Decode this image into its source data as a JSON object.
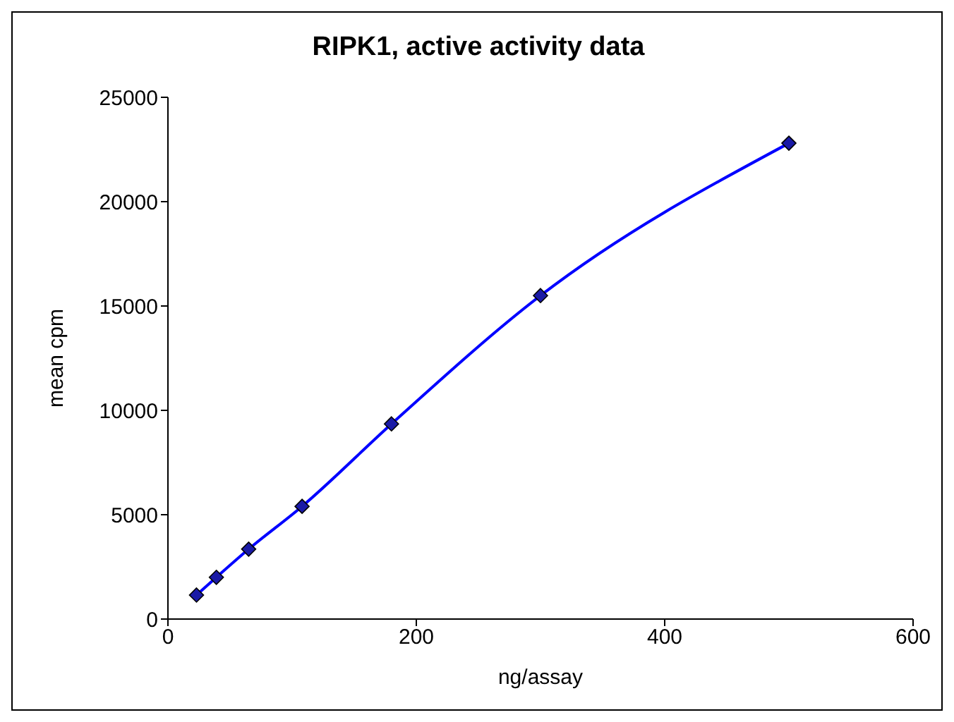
{
  "chart_data": {
    "type": "line",
    "title": "RIPK1, active activity data",
    "xlabel": "ng/assay",
    "ylabel": "mean cpm",
    "x": [
      23,
      39,
      65,
      108,
      180,
      300,
      500
    ],
    "series": [
      {
        "color": "#0000ff",
        "values": [
          1150,
          2000,
          3350,
          5400,
          9350,
          15500,
          22800
        ]
      }
    ],
    "xlim": [
      0,
      600
    ],
    "xticks": [
      0,
      200,
      400,
      600
    ],
    "ylim": [
      0,
      25000
    ],
    "yticks": [
      0,
      5000,
      10000,
      15000,
      20000,
      25000
    ],
    "grid": false,
    "legend": false,
    "marker": "diamond",
    "line_style": "solid"
  }
}
